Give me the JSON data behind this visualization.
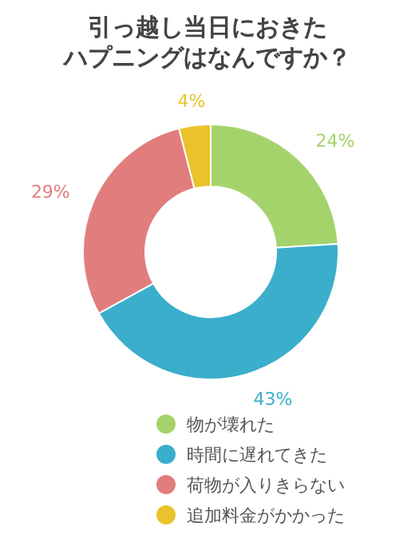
{
  "chart_data": {
    "type": "donut",
    "title": "引っ越し当日におきたハプニングはなんですか？",
    "categories": [
      "物が壊れた",
      "時間に遅れてきた",
      "荷物が入りきらない",
      "追加料金がかかった"
    ],
    "values": [
      24,
      43,
      29,
      4
    ],
    "colors": [
      "#a5d36b",
      "#3aaecb",
      "#e27d7d",
      "#e9c22c"
    ],
    "value_labels": [
      "24%",
      "43%",
      "29%",
      "4%"
    ],
    "legend": "bottom"
  }
}
